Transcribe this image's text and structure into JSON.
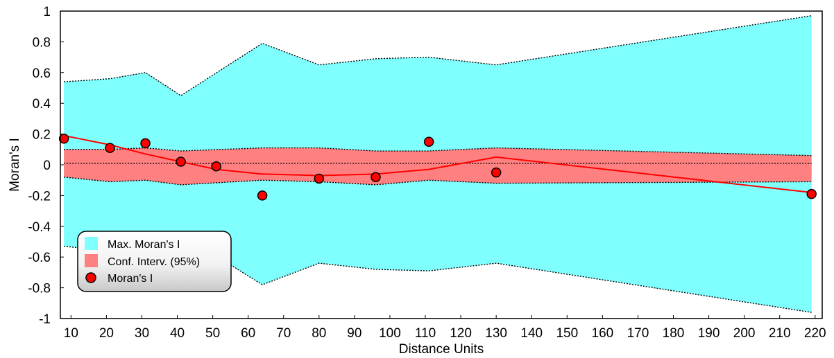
{
  "chart_data": {
    "type": "scatter",
    "xlabel": "Distance Units",
    "ylabel": "Moran's I",
    "xlim": [
      7,
      222
    ],
    "ylim": [
      -1,
      1
    ],
    "x_ticks": [
      10,
      20,
      30,
      40,
      50,
      60,
      70,
      80,
      90,
      100,
      110,
      120,
      130,
      140,
      150,
      160,
      170,
      180,
      190,
      200,
      210,
      220
    ],
    "y_ticks": [
      -1,
      -0.8,
      -0.6,
      -0.4,
      -0.2,
      0,
      0.2,
      0.4,
      0.6,
      0.8,
      1
    ],
    "x_tick_labels": [
      "10",
      "20",
      "30",
      "40",
      "50",
      "60",
      "70",
      "80",
      "90",
      "100",
      "110",
      "120",
      "130",
      "140",
      "150",
      "160",
      "170",
      "180",
      "190",
      "200",
      "210",
      "220"
    ],
    "y_tick_labels": [
      "-1",
      "-0.8",
      "-0.6",
      "-0.4",
      "-0.2",
      "0",
      "0.2",
      "0.4",
      "0.6",
      "0.8",
      "1"
    ],
    "legend_position": "bottom-left",
    "grid": false,
    "series": [
      {
        "name": "Max. Moran's I",
        "kind": "band",
        "color": "#80ffff",
        "x": [
          8,
          21,
          31,
          41,
          64,
          80,
          96,
          111,
          130,
          219
        ],
        "upper": [
          0.54,
          0.56,
          0.6,
          0.45,
          0.79,
          0.65,
          0.69,
          0.7,
          0.65,
          0.97
        ],
        "lower": [
          -0.53,
          -0.56,
          -0.6,
          -0.45,
          -0.78,
          -0.64,
          -0.68,
          -0.69,
          -0.64,
          -0.96
        ]
      },
      {
        "name": "Conf. Interv. (95%)",
        "kind": "band",
        "color": "#ff8080",
        "x": [
          8,
          21,
          31,
          41,
          64,
          80,
          96,
          111,
          130,
          219
        ],
        "upper": [
          0.1,
          0.1,
          0.11,
          0.09,
          0.11,
          0.11,
          0.09,
          0.09,
          0.11,
          0.06
        ],
        "lower": [
          -0.08,
          -0.11,
          -0.1,
          -0.13,
          -0.1,
          -0.11,
          -0.13,
          -0.1,
          -0.12,
          -0.11
        ]
      },
      {
        "name": "Moran's I",
        "kind": "points",
        "color": "#ff0000",
        "x": [
          8,
          21,
          31,
          41,
          51,
          64,
          80,
          96,
          111,
          130,
          219
        ],
        "y": [
          0.17,
          0.11,
          0.14,
          0.02,
          -0.01,
          -0.2,
          -0.09,
          -0.08,
          0.15,
          -0.05,
          -0.19
        ]
      }
    ],
    "trend_line": {
      "color": "#ff0000",
      "x": [
        8,
        21,
        31,
        41,
        51,
        64,
        80,
        96,
        111,
        130,
        219
      ],
      "y": [
        0.19,
        0.13,
        0.07,
        0.02,
        -0.03,
        -0.06,
        -0.07,
        -0.06,
        -0.03,
        0.05,
        -0.18
      ]
    },
    "reference_line_y": 0.01
  }
}
